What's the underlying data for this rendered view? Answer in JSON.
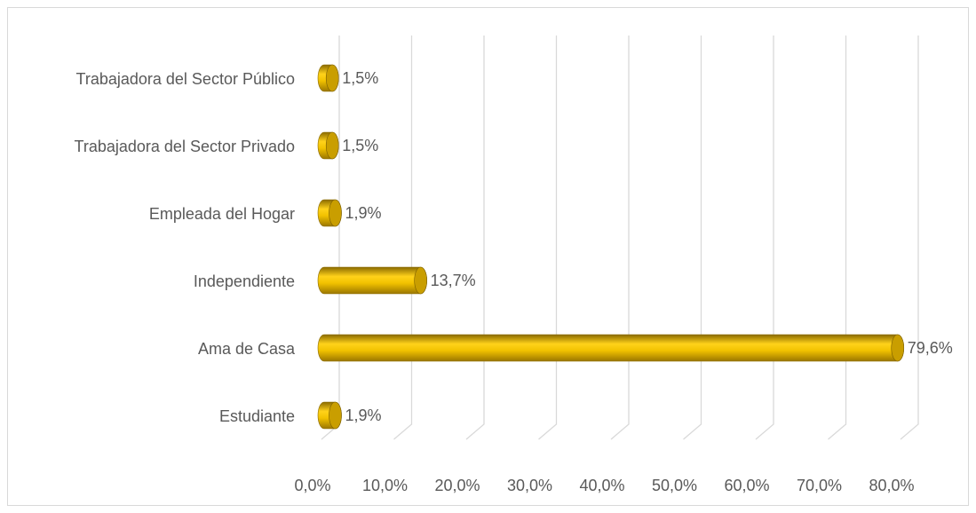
{
  "chart_data": {
    "type": "bar",
    "orientation": "horizontal",
    "categories": [
      "Estudiante",
      "Ama de Casa",
      "Independiente",
      "Empleada del Hogar",
      "Trabajadora del Sector Privado",
      "Trabajadora del Sector Público"
    ],
    "values": [
      1.9,
      79.6,
      13.7,
      1.9,
      1.5,
      1.5
    ],
    "value_labels": [
      "1,9%",
      "79,6%",
      "13,7%",
      "1,9%",
      "1,5%",
      "1,5%"
    ],
    "color": "#e8b800",
    "xlim": [
      0,
      80
    ],
    "xticks": [
      {
        "value": 0,
        "label": "0,0%"
      },
      {
        "value": 10,
        "label": "10,0%"
      },
      {
        "value": 20,
        "label": "20,0%"
      },
      {
        "value": 30,
        "label": "30,0%"
      },
      {
        "value": 40,
        "label": "40,0%"
      },
      {
        "value": 50,
        "label": "50,0%"
      },
      {
        "value": 60,
        "label": "60,0%"
      },
      {
        "value": 70,
        "label": "70,0%"
      },
      {
        "value": 80,
        "label": "80,0%"
      }
    ],
    "grid": true
  }
}
